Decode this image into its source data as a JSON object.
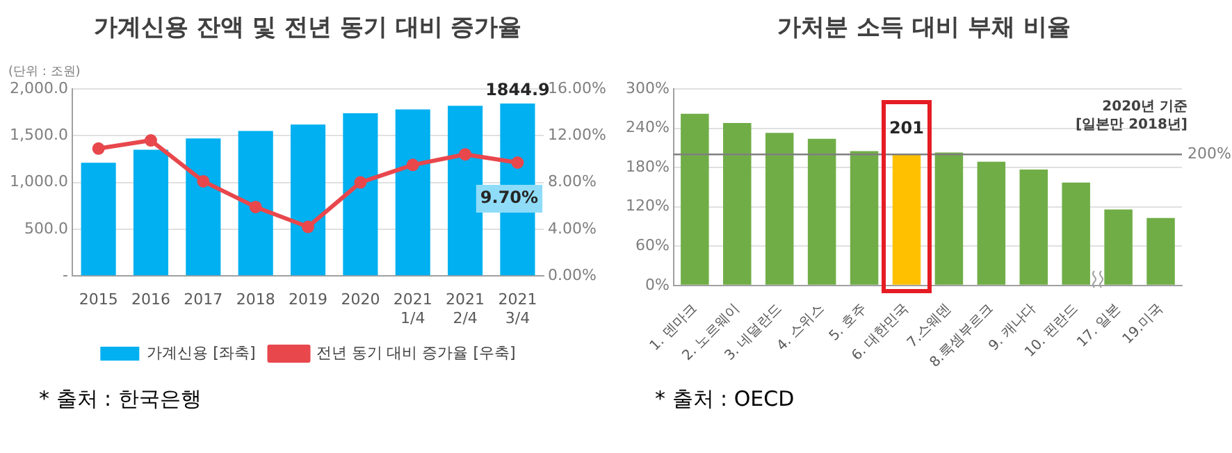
{
  "chart_data": [
    {
      "type": "bar",
      "title": "가계신용 잔액 및 전년 동기 대비 증가율",
      "ylabel": "(단위 : 조원)",
      "categories": [
        "2015",
        "2016",
        "2017",
        "2018",
        "2019",
        "2020",
        "2021\n1/4",
        "2021\n2/4",
        "2021\n3/4"
      ],
      "series": [
        {
          "name": "가계신용 [좌축]",
          "color": "#00b0f0",
          "values": [
            1210,
            1350,
            1470,
            1550,
            1620,
            1740,
            1780,
            1820,
            1844.9
          ],
          "value_labels": [
            null,
            null,
            null,
            null,
            null,
            null,
            null,
            null,
            "1844.9"
          ]
        },
        {
          "name": "전년 동기 대비 증가율 [우축]",
          "type": "line",
          "axis": "y2",
          "color": "#e8474c",
          "values": [
            10.9,
            11.6,
            8.1,
            5.9,
            4.2,
            8.0,
            9.5,
            10.4,
            9.7
          ],
          "value_labels": [
            null,
            null,
            null,
            null,
            null,
            null,
            null,
            null,
            "9.70%"
          ]
        }
      ],
      "ylim": [
        0,
        2000
      ],
      "yticks": [
        {
          "value": 0,
          "label": "-"
        },
        {
          "value": 500,
          "label": "500.0"
        },
        {
          "value": 1000,
          "label": "1,000.0"
        },
        {
          "value": 1500,
          "label": "1,500.0"
        },
        {
          "value": 2000,
          "label": "2,000.0"
        }
      ],
      "y2lim": [
        0,
        16
      ],
      "y2ticks": [
        {
          "value": 0,
          "label": "0.00%"
        },
        {
          "value": 4,
          "label": "4.00%"
        },
        {
          "value": 8,
          "label": "8.00%"
        },
        {
          "value": 12,
          "label": "12.00%"
        },
        {
          "value": 16,
          "label": "16.00%"
        }
      ],
      "grid": "y",
      "legend": "bottom",
      "marker": "circle",
      "annotations": [
        "*  출처 : 한국은행"
      ]
    },
    {
      "type": "bar",
      "title": "가처분 소득 대비 부채 비율",
      "subtitle": "2020년 기준\n[일본만 2018년]",
      "categories": [
        "1. 덴마크",
        "2. 노르웨이",
        "3. 네덜란드",
        "4. 스위스",
        "5. 호주",
        "6. 대한민국",
        "7.스웨덴",
        "8.룩셈부르크",
        "9. 캐나다",
        "10. 핀란드",
        "17. 일본",
        "19.미국"
      ],
      "values": [
        262,
        248,
        233,
        224,
        205,
        201,
        203,
        189,
        177,
        157,
        116,
        103
      ],
      "colors": [
        "#70ad47",
        "#70ad47",
        "#70ad47",
        "#70ad47",
        "#70ad47",
        "#ffc000",
        "#70ad47",
        "#70ad47",
        "#70ad47",
        "#70ad47",
        "#70ad47",
        "#70ad47"
      ],
      "value_labels": [
        null,
        null,
        null,
        null,
        null,
        "201",
        null,
        null,
        null,
        null,
        null,
        null
      ],
      "ylim": [
        0,
        300
      ],
      "yticks": [
        {
          "value": 0,
          "label": "0%"
        },
        {
          "value": 60,
          "label": "60%"
        },
        {
          "value": 120,
          "label": "120%"
        },
        {
          "value": 180,
          "label": "180%"
        },
        {
          "value": 240,
          "label": "240%"
        },
        {
          "value": 300,
          "label": "300%"
        }
      ],
      "ref_lines": [
        {
          "axis": "y",
          "value": 200,
          "label": "200%",
          "color": "#7f7f7f"
        }
      ],
      "grid": "y",
      "annotations": [
        "*  출처 : OECD"
      ]
    }
  ]
}
